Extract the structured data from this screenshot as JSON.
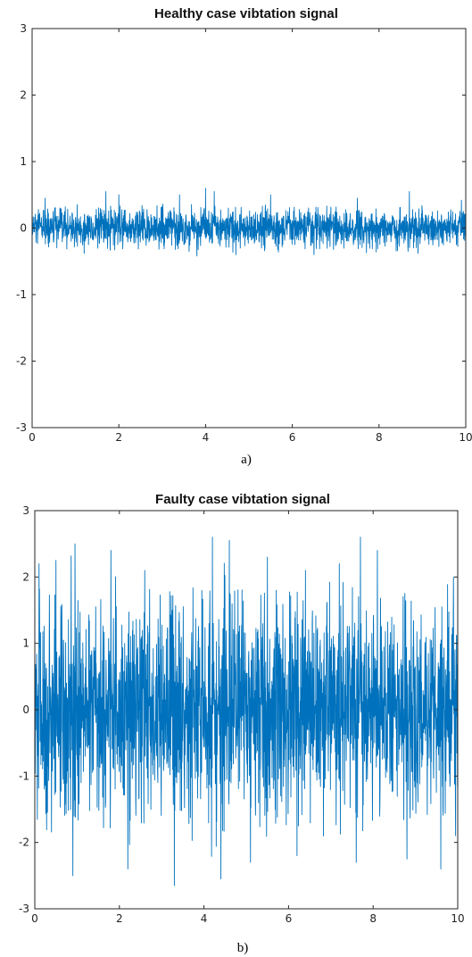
{
  "chart_data": [
    {
      "type": "line",
      "title": "Healthy case vibtation signal",
      "caption": "a)",
      "xlabel": "",
      "ylabel": "",
      "xlim": [
        0,
        10
      ],
      "ylim": [
        -3,
        3
      ],
      "x_ticks": [
        "0",
        "2",
        "4",
        "6",
        "8",
        "10"
      ],
      "y_ticks": [
        "3",
        "2",
        "1",
        "0",
        "-1",
        "-2",
        "-3"
      ],
      "series": [
        {
          "color": "#0072BD",
          "sample_interval": 0.005,
          "amplitude_envelope": {
            "mean": 0.0,
            "typical_min": -0.3,
            "typical_max": 0.3,
            "peak_max": 0.6,
            "peak_min": -0.45
          },
          "notable_peaks": [
            {
              "x": 4.0,
              "y": 0.6
            },
            {
              "x": 4.2,
              "y": 0.55
            },
            {
              "x": 1.7,
              "y": 0.55
            },
            {
              "x": 8.7,
              "y": 0.55
            },
            {
              "x": 2.0,
              "y": 0.5
            },
            {
              "x": 3.4,
              "y": 0.5
            },
            {
              "x": 5.5,
              "y": 0.5
            },
            {
              "x": 7.5,
              "y": 0.45
            },
            {
              "x": 0.3,
              "y": 0.45
            },
            {
              "x": 9.9,
              "y": 0.42
            },
            {
              "x": 3.8,
              "y": -0.42
            },
            {
              "x": 4.7,
              "y": -0.4
            },
            {
              "x": 6.5,
              "y": -0.4
            },
            {
              "x": 1.2,
              "y": -0.38
            },
            {
              "x": 8.9,
              "y": -0.38
            }
          ]
        }
      ]
    },
    {
      "type": "line",
      "title": "Faulty case vibtation signal",
      "caption": "b)",
      "xlabel": "",
      "ylabel": "",
      "xlim": [
        0,
        10
      ],
      "ylim": [
        -3,
        3
      ],
      "x_ticks": [
        "0",
        "2",
        "4",
        "6",
        "8",
        "10"
      ],
      "y_ticks": [
        "3",
        "2",
        "1",
        "0",
        "-1",
        "-2",
        "-3"
      ],
      "series": [
        {
          "color": "#0072BD",
          "sample_interval": 0.005,
          "amplitude_envelope": {
            "mean": 0.0,
            "typical_min": -1.7,
            "typical_max": 1.7,
            "peak_max": 2.6,
            "peak_min": -2.65
          },
          "notable_peaks": [
            {
              "x": 0.95,
              "y": 2.5
            },
            {
              "x": 0.1,
              "y": 2.2
            },
            {
              "x": 0.5,
              "y": 2.25
            },
            {
              "x": 1.8,
              "y": 2.4
            },
            {
              "x": 2.6,
              "y": 2.1
            },
            {
              "x": 4.2,
              "y": 2.6
            },
            {
              "x": 4.6,
              "y": 2.55
            },
            {
              "x": 5.5,
              "y": 2.3
            },
            {
              "x": 6.4,
              "y": 2.1
            },
            {
              "x": 7.2,
              "y": 2.2
            },
            {
              "x": 7.7,
              "y": 2.6
            },
            {
              "x": 8.1,
              "y": 2.4
            },
            {
              "x": 9.6,
              "y": 2.55
            },
            {
              "x": 9.9,
              "y": 2.0
            },
            {
              "x": 0.9,
              "y": -2.5
            },
            {
              "x": 2.2,
              "y": -2.4
            },
            {
              "x": 3.3,
              "y": -2.65
            },
            {
              "x": 4.4,
              "y": -2.55
            },
            {
              "x": 5.1,
              "y": -2.3
            },
            {
              "x": 6.2,
              "y": -2.2
            },
            {
              "x": 7.6,
              "y": -2.3
            },
            {
              "x": 8.8,
              "y": -2.25
            },
            {
              "x": 9.6,
              "y": -2.4
            },
            {
              "x": 9.95,
              "y": -1.9
            }
          ]
        }
      ]
    }
  ]
}
